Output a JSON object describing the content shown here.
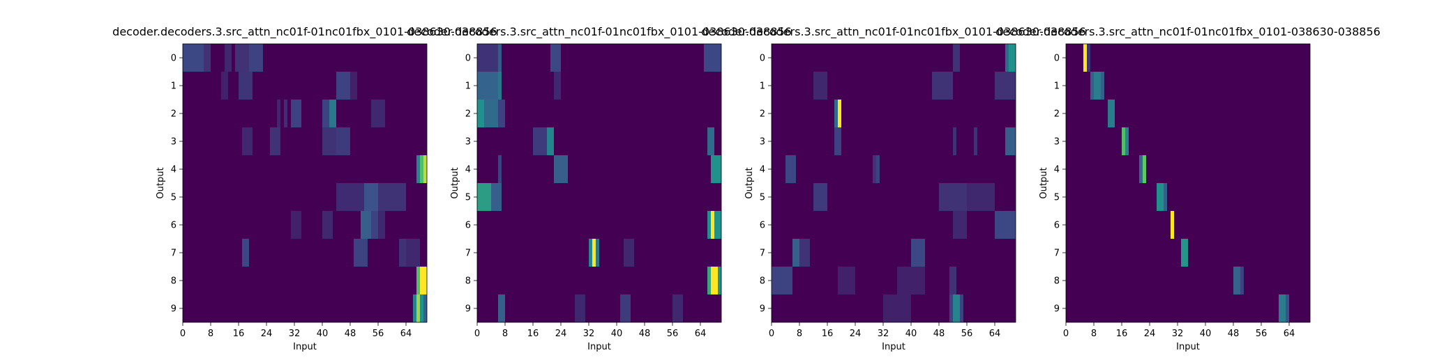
{
  "colors": {
    "low": "#440154",
    "mid_low": "#3b528b",
    "mid": "#21918c",
    "mid_high": "#5ec962",
    "high": "#fde725"
  },
  "chart_data": [
    {
      "type": "heatmap",
      "title": "decoder.decoders.3.src_attn_nc01f-01nc01fbx_0101-038630-038856",
      "xlabel": "Input",
      "ylabel": "Output",
      "x_range": [
        0,
        70
      ],
      "xticks": [
        0,
        8,
        16,
        24,
        32,
        40,
        48,
        56,
        64
      ],
      "yticks": [
        0,
        1,
        2,
        3,
        4,
        5,
        6,
        7,
        8,
        9
      ],
      "rows": [
        [
          [
            0,
            6,
            0.22
          ],
          [
            6,
            8,
            0.15
          ],
          [
            12,
            14,
            0.12
          ],
          [
            15,
            19,
            0.15
          ],
          [
            19,
            23,
            0.2
          ]
        ],
        [
          [
            11,
            13,
            0.1
          ],
          [
            16,
            20,
            0.16
          ],
          [
            44,
            48,
            0.2
          ],
          [
            48,
            50,
            0.1
          ]
        ],
        [
          [
            27,
            28,
            0.12
          ],
          [
            29,
            30,
            0.14
          ],
          [
            31,
            34,
            0.2
          ],
          [
            40,
            42,
            0.2
          ],
          [
            42,
            44,
            0.4
          ],
          [
            54,
            58,
            0.12
          ]
        ],
        [
          [
            17,
            20,
            0.12
          ],
          [
            25,
            28,
            0.15
          ],
          [
            40,
            44,
            0.15
          ],
          [
            44,
            48,
            0.18
          ]
        ],
        [
          [
            67,
            68,
            0.45
          ],
          [
            68,
            69,
            0.7
          ],
          [
            69,
            70,
            0.9
          ]
        ],
        [
          [
            44,
            52,
            0.13
          ],
          [
            52,
            56,
            0.25
          ],
          [
            56,
            64,
            0.15
          ]
        ],
        [
          [
            31,
            34,
            0.1
          ],
          [
            40,
            43,
            0.12
          ],
          [
            51,
            54,
            0.3
          ],
          [
            54,
            56,
            0.2
          ],
          [
            56,
            58,
            0.12
          ]
        ],
        [
          [
            17,
            19,
            0.22
          ],
          [
            49,
            53,
            0.2
          ],
          [
            62,
            64,
            0.15
          ],
          [
            64,
            68,
            0.12
          ]
        ],
        [
          [
            67,
            68,
            0.7
          ],
          [
            68,
            70,
            1.0
          ]
        ],
        [
          [
            66,
            67,
            0.45
          ],
          [
            67,
            68,
            0.85
          ],
          [
            68,
            69,
            0.5
          ],
          [
            69,
            70,
            0.3
          ]
        ]
      ]
    },
    {
      "type": "heatmap",
      "title": "decoder.decoders.3.src_attn_nc01f-01nc01fbx_0101-038630-038856",
      "xlabel": "Input",
      "ylabel": "Output",
      "x_range": [
        0,
        70
      ],
      "xticks": [
        0,
        8,
        16,
        24,
        32,
        40,
        48,
        56,
        64
      ],
      "yticks": [
        0,
        1,
        2,
        3,
        4,
        5,
        6,
        7,
        8,
        9
      ],
      "rows": [
        [
          [
            0,
            6,
            0.15
          ],
          [
            6,
            7,
            0.28
          ],
          [
            21,
            24,
            0.22
          ],
          [
            65,
            70,
            0.22
          ]
        ],
        [
          [
            0,
            6,
            0.32
          ],
          [
            6,
            7,
            0.4
          ],
          [
            22,
            24,
            0.12
          ]
        ],
        [
          [
            0,
            2,
            0.5
          ],
          [
            2,
            6,
            0.35
          ],
          [
            6,
            8,
            0.2
          ]
        ],
        [
          [
            16,
            20,
            0.18
          ],
          [
            20,
            22,
            0.45
          ],
          [
            66,
            68,
            0.35
          ]
        ],
        [
          [
            6,
            7,
            0.2
          ],
          [
            22,
            26,
            0.3
          ],
          [
            67,
            70,
            0.5
          ]
        ],
        [
          [
            0,
            4,
            0.55
          ],
          [
            4,
            7,
            0.3
          ]
        ],
        [
          [
            66,
            67,
            0.5
          ],
          [
            67,
            68,
            1.0
          ],
          [
            68,
            70,
            0.5
          ]
        ],
        [
          [
            32,
            33,
            0.45
          ],
          [
            33,
            34,
            1.0
          ],
          [
            34,
            35,
            0.4
          ],
          [
            42,
            45,
            0.12
          ]
        ],
        [
          [
            66,
            67,
            0.6
          ],
          [
            67,
            69,
            1.0
          ],
          [
            69,
            70,
            0.5
          ]
        ],
        [
          [
            6,
            8,
            0.3
          ],
          [
            28,
            31,
            0.12
          ],
          [
            41,
            44,
            0.18
          ],
          [
            56,
            59,
            0.12
          ]
        ]
      ]
    },
    {
      "type": "heatmap",
      "title": "decoder.decoders.3.src_attn_nc01f-01nc01fbx_0101-038630-038856",
      "xlabel": "Input",
      "ylabel": "Output",
      "x_range": [
        0,
        70
      ],
      "xticks": [
        0,
        8,
        16,
        24,
        32,
        40,
        48,
        56,
        64
      ],
      "yticks": [
        0,
        1,
        2,
        3,
        4,
        5,
        6,
        7,
        8,
        9
      ],
      "rows": [
        [
          [
            52,
            54,
            0.15
          ],
          [
            67,
            68,
            0.35
          ],
          [
            68,
            70,
            0.5
          ]
        ],
        [
          [
            12,
            16,
            0.12
          ],
          [
            46,
            52,
            0.15
          ],
          [
            64,
            70,
            0.15
          ]
        ],
        [
          [
            18,
            19,
            0.35
          ],
          [
            19,
            20,
            1.0
          ]
        ],
        [
          [
            18,
            20,
            0.2
          ],
          [
            52,
            53,
            0.15
          ],
          [
            58,
            59,
            0.15
          ],
          [
            67,
            70,
            0.3
          ]
        ],
        [
          [
            4,
            7,
            0.22
          ],
          [
            29,
            30,
            0.15
          ],
          [
            30,
            31,
            0.2
          ]
        ],
        [
          [
            12,
            16,
            0.18
          ],
          [
            48,
            56,
            0.15
          ],
          [
            56,
            64,
            0.12
          ]
        ],
        [
          [
            52,
            56,
            0.12
          ],
          [
            64,
            70,
            0.22
          ]
        ],
        [
          [
            6,
            8,
            0.3
          ],
          [
            8,
            11,
            0.15
          ],
          [
            40,
            44,
            0.22
          ]
        ],
        [
          [
            0,
            6,
            0.2
          ],
          [
            19,
            24,
            0.1
          ],
          [
            36,
            44,
            0.1
          ],
          [
            51,
            53,
            0.15
          ]
        ],
        [
          [
            32,
            40,
            0.1
          ],
          [
            51,
            52,
            0.2
          ],
          [
            52,
            54,
            0.45
          ],
          [
            54,
            55,
            0.2
          ]
        ]
      ]
    },
    {
      "type": "heatmap",
      "title": "decoder.decoders.3.src_attn_nc01f-01nc01fbx_0101-038630-038856",
      "xlabel": "Input",
      "ylabel": "Output",
      "x_range": [
        0,
        70
      ],
      "xticks": [
        0,
        8,
        16,
        24,
        32,
        40,
        48,
        56,
        64
      ],
      "yticks": [
        0,
        1,
        2,
        3,
        4,
        5,
        6,
        7,
        8,
        9
      ],
      "rows": [
        [
          [
            5,
            6,
            1.0
          ],
          [
            6,
            7,
            0.15
          ]
        ],
        [
          [
            7,
            8,
            0.3
          ],
          [
            8,
            10,
            0.42
          ],
          [
            10,
            11,
            0.3
          ]
        ],
        [
          [
            12,
            14,
            0.42
          ]
        ],
        [
          [
            16,
            17,
            0.7
          ],
          [
            17,
            18,
            0.45
          ]
        ],
        [
          [
            21,
            22,
            0.35
          ],
          [
            22,
            23,
            0.75
          ]
        ],
        [
          [
            26,
            28,
            0.5
          ],
          [
            28,
            29,
            0.3
          ]
        ],
        [
          [
            30,
            31,
            1.0
          ]
        ],
        [
          [
            33,
            35,
            0.52
          ]
        ],
        [
          [
            48,
            50,
            0.32
          ],
          [
            50,
            51,
            0.2
          ]
        ],
        [
          [
            61,
            63,
            0.42
          ],
          [
            63,
            64,
            0.25
          ]
        ]
      ]
    }
  ]
}
